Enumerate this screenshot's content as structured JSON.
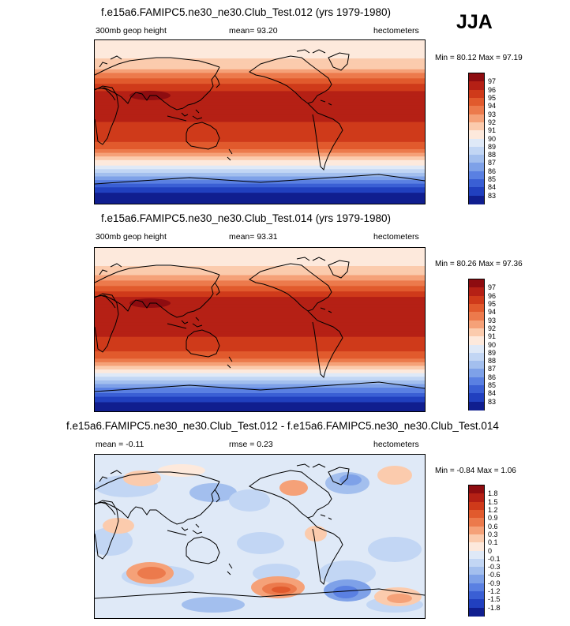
{
  "season": "JJA",
  "panels": [
    {
      "title": "f.e15a6.FAMIPC5.ne30_ne30.Club_Test.012 (yrs 1979-1980)",
      "left_label": "300mb geop height",
      "center_label": "mean=  93.20",
      "right_label": "hectometers",
      "minmax": "Min =  80.12 Max =  97.19",
      "colorbar_labels": [
        "97",
        "96",
        "95",
        "94",
        "93",
        "92",
        "91",
        "90",
        "89",
        "88",
        "87",
        "86",
        "85",
        "84",
        "83"
      ],
      "colorbar_colors": [
        "#8e0c10",
        "#b52015",
        "#cf3a1a",
        "#e15a2d",
        "#ec7a4c",
        "#f5a178",
        "#fbcbad",
        "#fde9dc",
        "#dfe9f7",
        "#c2d6f4",
        "#a3bfee",
        "#7ea1e8",
        "#5a80e2",
        "#3a5fd4",
        "#2140bf",
        "#101e8f"
      ],
      "chart_data": {
        "type": "heatmap",
        "variable": "300mb geop height",
        "units": "hectometers",
        "mean": 93.2,
        "min": 80.12,
        "max": 97.19,
        "levels": [
          83,
          84,
          85,
          86,
          87,
          88,
          89,
          90,
          91,
          92,
          93,
          94,
          95,
          96,
          97
        ],
        "lat": [
          -90,
          -75,
          -60,
          -45,
          -30,
          -15,
          0,
          15,
          30,
          45,
          60,
          75,
          90
        ],
        "zonal_mean": [
          81.5,
          83.5,
          87.0,
          90.5,
          94.2,
          95.8,
          96.0,
          96.3,
          96.6,
          94.5,
          91.8,
          90.5,
          90.2
        ]
      }
    },
    {
      "title": "f.e15a6.FAMIPC5.ne30_ne30.Club_Test.014 (yrs 1979-1980)",
      "left_label": "300mb geop height",
      "center_label": "mean=  93.31",
      "right_label": "hectometers",
      "minmax": "Min =  80.26 Max =  97.36",
      "colorbar_labels": [
        "97",
        "96",
        "95",
        "94",
        "93",
        "92",
        "91",
        "90",
        "89",
        "88",
        "87",
        "86",
        "85",
        "84",
        "83"
      ],
      "colorbar_colors": [
        "#8e0c10",
        "#b52015",
        "#cf3a1a",
        "#e15a2d",
        "#ec7a4c",
        "#f5a178",
        "#fbcbad",
        "#fde9dc",
        "#dfe9f7",
        "#c2d6f4",
        "#a3bfee",
        "#7ea1e8",
        "#5a80e2",
        "#3a5fd4",
        "#2140bf",
        "#101e8f"
      ],
      "chart_data": {
        "type": "heatmap",
        "variable": "300mb geop height",
        "units": "hectometers",
        "mean": 93.31,
        "min": 80.26,
        "max": 97.36,
        "levels": [
          83,
          84,
          85,
          86,
          87,
          88,
          89,
          90,
          91,
          92,
          93,
          94,
          95,
          96,
          97
        ],
        "lat": [
          -90,
          -75,
          -60,
          -45,
          -30,
          -15,
          0,
          15,
          30,
          45,
          60,
          75,
          90
        ],
        "zonal_mean": [
          81.6,
          83.6,
          87.1,
          90.6,
          94.3,
          95.9,
          96.1,
          96.4,
          96.7,
          94.6,
          91.9,
          90.6,
          90.3
        ]
      }
    },
    {
      "title": "f.e15a6.FAMIPC5.ne30_ne30.Club_Test.012 - f.e15a6.FAMIPC5.ne30_ne30.Club_Test.014",
      "left_label": "mean =  -0.11",
      "center_label": "rmse =   0.23",
      "right_label": "hectometers",
      "minmax": "Min =  -0.84 Max =   1.06",
      "colorbar_labels": [
        "1.8",
        "1.5",
        "1.2",
        "0.9",
        "0.6",
        "0.3",
        "0.1",
        "0",
        "-0.1",
        "-0.3",
        "-0.6",
        "-0.9",
        "-1.2",
        "-1.5",
        "-1.8"
      ],
      "colorbar_colors": [
        "#8e0c10",
        "#b52015",
        "#cf3a1a",
        "#e15a2d",
        "#ec7a4c",
        "#f5a178",
        "#fbcbad",
        "#fde9dc",
        "#dfe9f7",
        "#c2d6f4",
        "#a3bfee",
        "#7ea1e8",
        "#5a80e2",
        "#3a5fd4",
        "#2140bf",
        "#101e8f"
      ],
      "chart_data": {
        "type": "heatmap",
        "variable": "difference",
        "units": "hectometers",
        "mean": -0.11,
        "rmse": 0.23,
        "min": -0.84,
        "max": 1.06,
        "levels": [
          -1.8,
          -1.5,
          -1.2,
          -0.9,
          -0.6,
          -0.3,
          -0.1,
          0,
          0.1,
          0.3,
          0.6,
          0.9,
          1.2,
          1.5,
          1.8
        ]
      }
    }
  ]
}
